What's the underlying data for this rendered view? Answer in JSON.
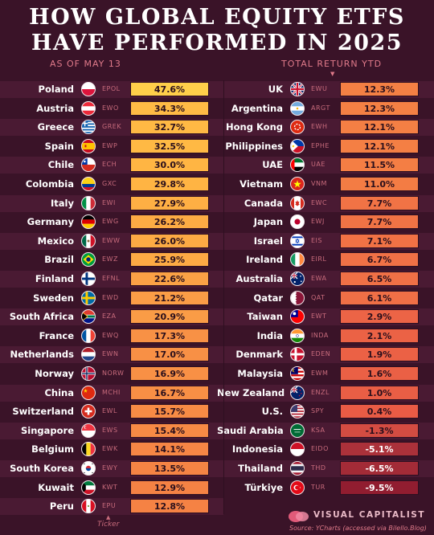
{
  "title_line1": "HOW GLOBAL EQUITY ETFS",
  "title_line2": "HAVE PERFORMED IN 2025",
  "as_of": "AS OF MAY 13",
  "total_return_label": "TOTAL RETURN YTD",
  "ticker_label": "Ticker",
  "brand": "VISUAL CAPITALIST",
  "source": "Source: YCharts (accessed via Bilello.Blog)",
  "chart_data": {
    "type": "table",
    "left": [
      {
        "country": "Poland",
        "ticker": "EPOL",
        "value": 47.6,
        "label": "47.6%",
        "flag": "poland-flag"
      },
      {
        "country": "Austria",
        "ticker": "EWO",
        "value": 34.3,
        "label": "34.3%",
        "flag": "austria-flag"
      },
      {
        "country": "Greece",
        "ticker": "GREK",
        "value": 32.7,
        "label": "32.7%",
        "flag": "greece-flag"
      },
      {
        "country": "Spain",
        "ticker": "EWP",
        "value": 32.5,
        "label": "32.5%",
        "flag": "spain-flag"
      },
      {
        "country": "Chile",
        "ticker": "ECH",
        "value": 30.0,
        "label": "30.0%",
        "flag": "chile-flag"
      },
      {
        "country": "Colombia",
        "ticker": "GXC",
        "value": 29.8,
        "label": "29.8%",
        "flag": "colombia-flag"
      },
      {
        "country": "Italy",
        "ticker": "EWI",
        "value": 27.9,
        "label": "27.9%",
        "flag": "italy-flag"
      },
      {
        "country": "Germany",
        "ticker": "EWG",
        "value": 26.2,
        "label": "26.2%",
        "flag": "germany-flag"
      },
      {
        "country": "Mexico",
        "ticker": "EWW",
        "value": 26.0,
        "label": "26.0%",
        "flag": "mexico-flag"
      },
      {
        "country": "Brazil",
        "ticker": "EWZ",
        "value": 25.9,
        "label": "25.9%",
        "flag": "brazil-flag"
      },
      {
        "country": "Finland",
        "ticker": "EFNL",
        "value": 22.6,
        "label": "22.6%",
        "flag": "finland-flag"
      },
      {
        "country": "Sweden",
        "ticker": "EWD",
        "value": 21.2,
        "label": "21.2%",
        "flag": "sweden-flag"
      },
      {
        "country": "South Africa",
        "ticker": "EZA",
        "value": 20.9,
        "label": "20.9%",
        "flag": "south-africa-flag"
      },
      {
        "country": "France",
        "ticker": "EWQ",
        "value": 17.3,
        "label": "17.3%",
        "flag": "france-flag"
      },
      {
        "country": "Netherlands",
        "ticker": "EWN",
        "value": 17.0,
        "label": "17.0%",
        "flag": "netherlands-flag"
      },
      {
        "country": "Norway",
        "ticker": "NORW",
        "value": 16.9,
        "label": "16.9%",
        "flag": "norway-flag"
      },
      {
        "country": "China",
        "ticker": "MCHI",
        "value": 16.7,
        "label": "16.7%",
        "flag": "china-flag"
      },
      {
        "country": "Switzerland",
        "ticker": "EWL",
        "value": 15.7,
        "label": "15.7%",
        "flag": "switzerland-flag"
      },
      {
        "country": "Singapore",
        "ticker": "EWS",
        "value": 15.4,
        "label": "15.4%",
        "flag": "singapore-flag"
      },
      {
        "country": "Belgium",
        "ticker": "EWK",
        "value": 14.1,
        "label": "14.1%",
        "flag": "belgium-flag"
      },
      {
        "country": "South Korea",
        "ticker": "EWY",
        "value": 13.5,
        "label": "13.5%",
        "flag": "south-korea-flag"
      },
      {
        "country": "Kuwait",
        "ticker": "KWT",
        "value": 12.9,
        "label": "12.9%",
        "flag": "kuwait-flag"
      },
      {
        "country": "Peru",
        "ticker": "EPU",
        "value": 12.8,
        "label": "12.8%",
        "flag": "peru-flag"
      }
    ],
    "right": [
      {
        "country": "UK",
        "ticker": "EWU",
        "value": 12.3,
        "label": "12.3%",
        "flag": "uk-flag"
      },
      {
        "country": "Argentina",
        "ticker": "ARGT",
        "value": 12.3,
        "label": "12.3%",
        "flag": "argentina-flag"
      },
      {
        "country": "Hong Kong",
        "ticker": "EWH",
        "value": 12.1,
        "label": "12.1%",
        "flag": "hong-kong-flag"
      },
      {
        "country": "Philippines",
        "ticker": "EPHE",
        "value": 12.1,
        "label": "12.1%",
        "flag": "philippines-flag"
      },
      {
        "country": "UAE",
        "ticker": "UAE",
        "value": 11.5,
        "label": "11.5%",
        "flag": "uae-flag"
      },
      {
        "country": "Vietnam",
        "ticker": "VNM",
        "value": 11.0,
        "label": "11.0%",
        "flag": "vietnam-flag"
      },
      {
        "country": "Canada",
        "ticker": "EWC",
        "value": 7.7,
        "label": "7.7%",
        "flag": "canada-flag"
      },
      {
        "country": "Japan",
        "ticker": "EWJ",
        "value": 7.7,
        "label": "7.7%",
        "flag": "japan-flag"
      },
      {
        "country": "Israel",
        "ticker": "EIS",
        "value": 7.1,
        "label": "7.1%",
        "flag": "israel-flag"
      },
      {
        "country": "Ireland",
        "ticker": "EIRL",
        "value": 6.7,
        "label": "6.7%",
        "flag": "ireland-flag"
      },
      {
        "country": "Australia",
        "ticker": "EWA",
        "value": 6.5,
        "label": "6.5%",
        "flag": "australia-flag"
      },
      {
        "country": "Qatar",
        "ticker": "QAT",
        "value": 6.1,
        "label": "6.1%",
        "flag": "qatar-flag"
      },
      {
        "country": "Taiwan",
        "ticker": "EWT",
        "value": 2.9,
        "label": "2.9%",
        "flag": "taiwan-flag"
      },
      {
        "country": "India",
        "ticker": "INDA",
        "value": 2.1,
        "label": "2.1%",
        "flag": "india-flag"
      },
      {
        "country": "Denmark",
        "ticker": "EDEN",
        "value": 1.9,
        "label": "1.9%",
        "flag": "denmark-flag"
      },
      {
        "country": "Malaysia",
        "ticker": "EWM",
        "value": 1.6,
        "label": "1.6%",
        "flag": "malaysia-flag"
      },
      {
        "country": "New Zealand",
        "ticker": "ENZL",
        "value": 1.0,
        "label": "1.0%",
        "flag": "new-zealand-flag"
      },
      {
        "country": "U.S.",
        "ticker": "SPY",
        "value": 0.4,
        "label": "0.4%",
        "flag": "us-flag"
      },
      {
        "country": "Saudi Arabia",
        "ticker": "KSA",
        "value": -1.3,
        "label": "-1.3%",
        "flag": "saudi-arabia-flag"
      },
      {
        "country": "Indonesia",
        "ticker": "EIDO",
        "value": -5.1,
        "label": "-5.1%",
        "flag": "indonesia-flag"
      },
      {
        "country": "Thailand",
        "ticker": "THD",
        "value": -6.5,
        "label": "-6.5%",
        "flag": "thailand-flag"
      },
      {
        "country": "Türkiye",
        "ticker": "TUR",
        "value": -9.5,
        "label": "-9.5%",
        "flag": "turkiye-flag"
      }
    ],
    "color_scale": [
      "#ffc441",
      "#f99a45",
      "#f2743f",
      "#e35a42",
      "#b83a3e",
      "#8e1b2f"
    ]
  }
}
